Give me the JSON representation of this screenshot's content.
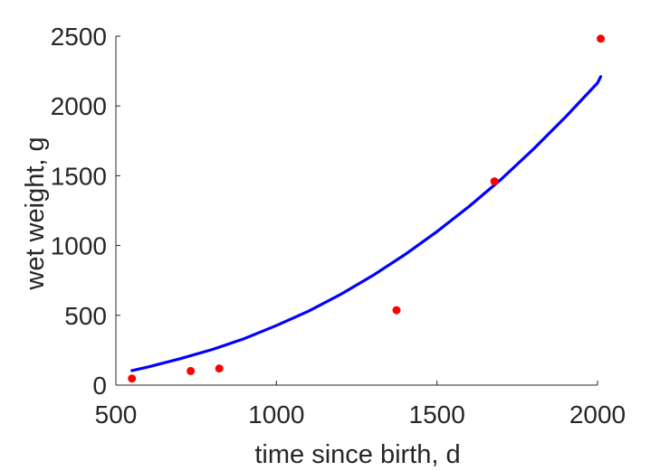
{
  "chart_data": {
    "type": "scatter",
    "title": "",
    "xlabel": "time since birth, d",
    "ylabel": "wet weight, g",
    "xlim": [
      500,
      2000
    ],
    "ylim": [
      0,
      2500
    ],
    "xticks": [
      500,
      1000,
      1500,
      2000
    ],
    "yticks": [
      0,
      500,
      1000,
      1500,
      2000,
      2500
    ],
    "grid": false,
    "legend": "none",
    "series": [
      {
        "kind": "points",
        "color": "#ff0000",
        "marker": "dot",
        "x": [
          550,
          733,
          822,
          1374,
          1679,
          2010
        ],
        "y": [
          47,
          101,
          119,
          537,
          1460,
          2482
        ]
      },
      {
        "kind": "line",
        "color": "#0000ff",
        "x": [
          550,
          600,
          700,
          800,
          900,
          1000,
          1100,
          1200,
          1300,
          1400,
          1500,
          1600,
          1700,
          1800,
          1900,
          2000,
          2010
        ],
        "y": [
          104,
          130,
          189,
          255,
          333,
          427,
          530,
          650,
          785,
          935,
          1100,
          1280,
          1475,
          1690,
          1920,
          2165,
          2210
        ]
      }
    ]
  }
}
